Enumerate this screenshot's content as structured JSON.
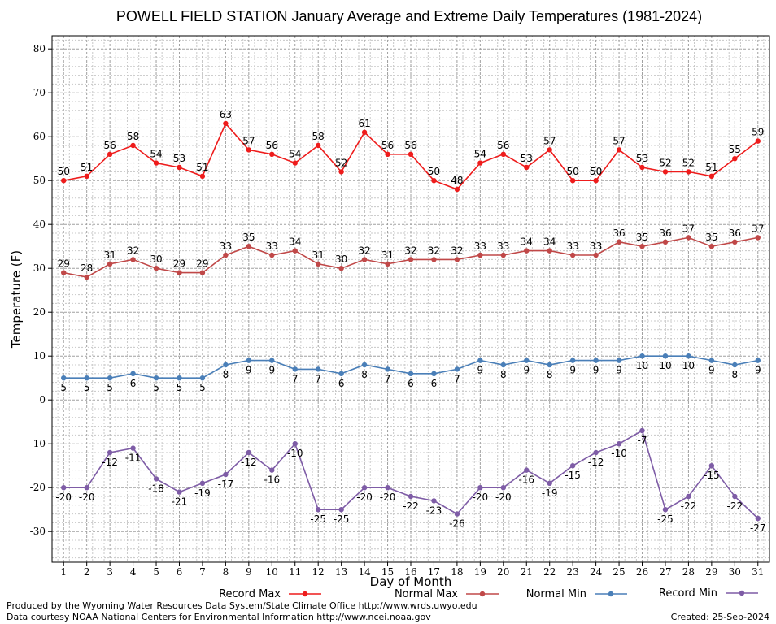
{
  "chart_data": {
    "type": "line",
    "title": "POWELL FIELD STATION January Average and Extreme Daily Temperatures (1981-2024)",
    "xlabel": "Day of Month",
    "ylabel": "Temperature (F)",
    "x": [
      1,
      2,
      3,
      4,
      5,
      6,
      7,
      8,
      9,
      10,
      11,
      12,
      13,
      14,
      15,
      16,
      17,
      18,
      19,
      20,
      21,
      22,
      23,
      24,
      25,
      26,
      27,
      28,
      29,
      30,
      31
    ],
    "xlim": [
      0.5,
      31.5
    ],
    "ylim": [
      -37,
      83
    ],
    "yticks": [
      -30,
      -20,
      -10,
      0,
      10,
      20,
      30,
      40,
      50,
      60,
      70,
      80
    ],
    "grid": true,
    "legend_position": "bottom",
    "series": [
      {
        "name": "Record Max",
        "color": "#ee1c1c",
        "label_position": "above",
        "values": [
          50,
          51,
          56,
          58,
          54,
          53,
          51,
          63,
          57,
          56,
          54,
          58,
          52,
          61,
          56,
          56,
          50,
          48,
          54,
          56,
          53,
          57,
          50,
          50,
          57,
          53,
          52,
          52,
          51,
          55,
          59
        ]
      },
      {
        "name": "Normal Max",
        "color": "#c04848",
        "label_position": "above",
        "values": [
          29,
          28,
          31,
          32,
          30,
          29,
          29,
          33,
          35,
          33,
          34,
          31,
          30,
          32,
          31,
          32,
          32,
          32,
          33,
          33,
          34,
          34,
          33,
          33,
          36,
          35,
          36,
          37,
          35,
          36,
          37
        ]
      },
      {
        "name": "Normal Min",
        "color": "#4a7fb8",
        "label_position": "below",
        "values": [
          5,
          5,
          5,
          6,
          5,
          5,
          5,
          8,
          9,
          9,
          7,
          7,
          6,
          8,
          7,
          6,
          6,
          7,
          9,
          8,
          9,
          8,
          9,
          9,
          9,
          10,
          10,
          10,
          9,
          8,
          9
        ]
      },
      {
        "name": "Record Min",
        "color": "#7e5ca6",
        "label_position": "below",
        "values": [
          -20,
          -20,
          -12,
          -11,
          -18,
          -21,
          -19,
          -17,
          -12,
          -16,
          -10,
          -25,
          -25,
          -20,
          -20,
          -22,
          -23,
          -26,
          -20,
          -20,
          -16,
          -19,
          -15,
          -12,
          -10,
          -7,
          -25,
          -22,
          -15,
          -22,
          -27
        ]
      }
    ]
  },
  "footer": {
    "produced_by": "Produced by the Wyoming Water Resources Data System/State Climate Office http://www.wrds.uwyo.edu",
    "courtesy": "Data courtesy NOAA National Centers for Environmental Information http://www.ncei.noaa.gov",
    "created": "Created:  25-Sep-2024"
  }
}
